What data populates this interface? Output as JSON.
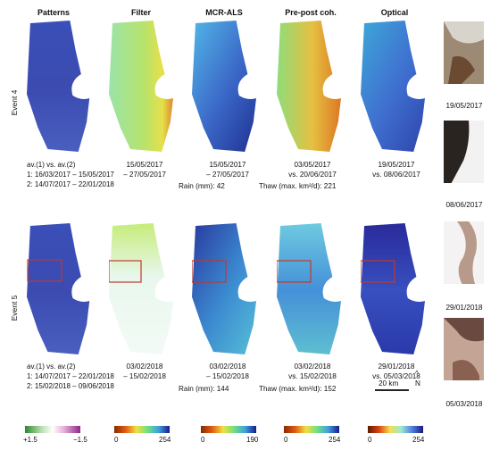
{
  "headers": [
    "Patterns",
    "Filter",
    "MCR-ALS",
    "Pre-post coh.",
    "Optical"
  ],
  "events": [
    {
      "label": "Event 4",
      "patterns_caption": [
        "av.(1) vs. av.(2)",
        "1: 16/03/2017 – 15/05/2017",
        "2: 14/07/2017 – 22/01/2018"
      ],
      "captions": [
        [
          "15/05/2017",
          "– 27/05/2017"
        ],
        [
          "15/05/2017",
          "– 27/05/2017"
        ],
        [
          "03/05/2017",
          "vs. 20/06/2017"
        ],
        [
          "19/05/2017",
          "vs. 08/06/2017"
        ]
      ],
      "rain": "Rain (mm): 42",
      "thaw": "Thaw (max. km²/d): 221",
      "thumbs": [
        "19/05/2017",
        "08/06/2017"
      ]
    },
    {
      "label": "Event 5",
      "patterns_caption": [
        "av.(1) vs. av.(2)",
        "1: 14/07/2017 – 22/01/2018",
        "2: 15/02/2018 – 09/06/2018"
      ],
      "captions": [
        [
          "03/02/2018",
          "– 15/02/2018"
        ],
        [
          "03/02/2018",
          "– 15/02/2018"
        ],
        [
          "03/02/2018",
          "vs. 15/02/2018"
        ],
        [
          "29/01/2018",
          "vs. 05/03/2018"
        ]
      ],
      "rain": "Rain (mm): 144",
      "thaw": "Thaw (max. km²/d): 152",
      "thumbs": [
        "29/01/2018",
        "05/03/2018"
      ]
    }
  ],
  "scalebar": {
    "label": "20 km",
    "north": "N",
    "arrow": "^"
  },
  "colorbars": [
    {
      "min": "+1.5",
      "max": "−1.5"
    },
    {
      "min": "0",
      "max": "254"
    },
    {
      "min": "0",
      "max": "190"
    },
    {
      "min": "0",
      "max": "254"
    },
    {
      "min": "0",
      "max": "254"
    }
  ]
}
